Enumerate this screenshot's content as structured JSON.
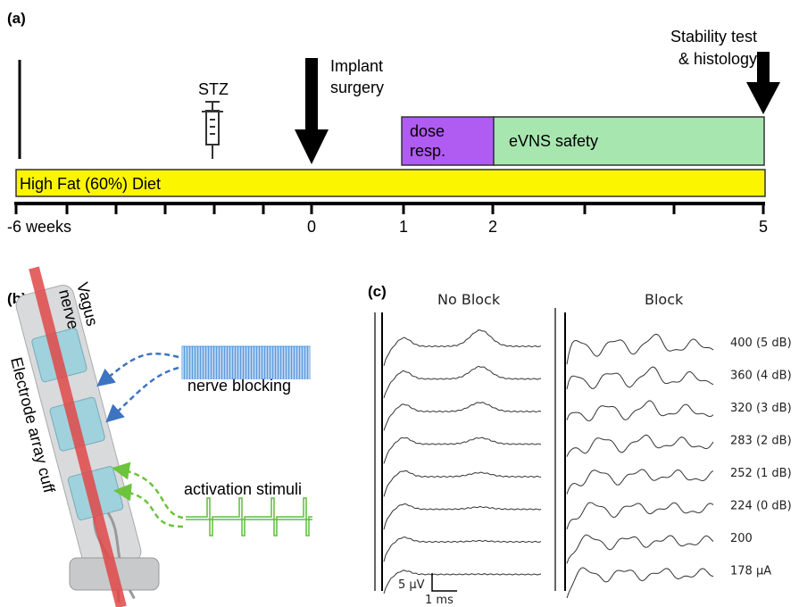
{
  "panel_a": {
    "label": "(a)",
    "stability": [
      "Stability test",
      "& histology"
    ],
    "stz": "STZ",
    "implant": [
      "Implant",
      "surgery"
    ],
    "dose": [
      "dose",
      "resp."
    ],
    "safety": "eVNS safety",
    "diet": "High Fat (60%) Diet",
    "ticks": [
      "-6 weeks",
      "0",
      "1",
      "2",
      "5"
    ]
  },
  "panel_b": {
    "label": "(b)",
    "nerve": [
      "Vagus",
      "nerve"
    ],
    "cuff": "Electrode array cuff",
    "blocking": "nerve blocking",
    "activation": "activation stimuli"
  },
  "panel_c": {
    "label": "(c)",
    "no_block": "No Block",
    "block": "Block",
    "amplitudes": [
      "400 (5 dB)",
      "360 (4 dB)",
      "320 (3 dB)",
      "283 (2 dB)",
      "252 (1 dB)",
      "224 (0 dB)",
      "200",
      "178 µA"
    ],
    "scale_v": "5 µV",
    "scale_t": "1 ms"
  }
}
